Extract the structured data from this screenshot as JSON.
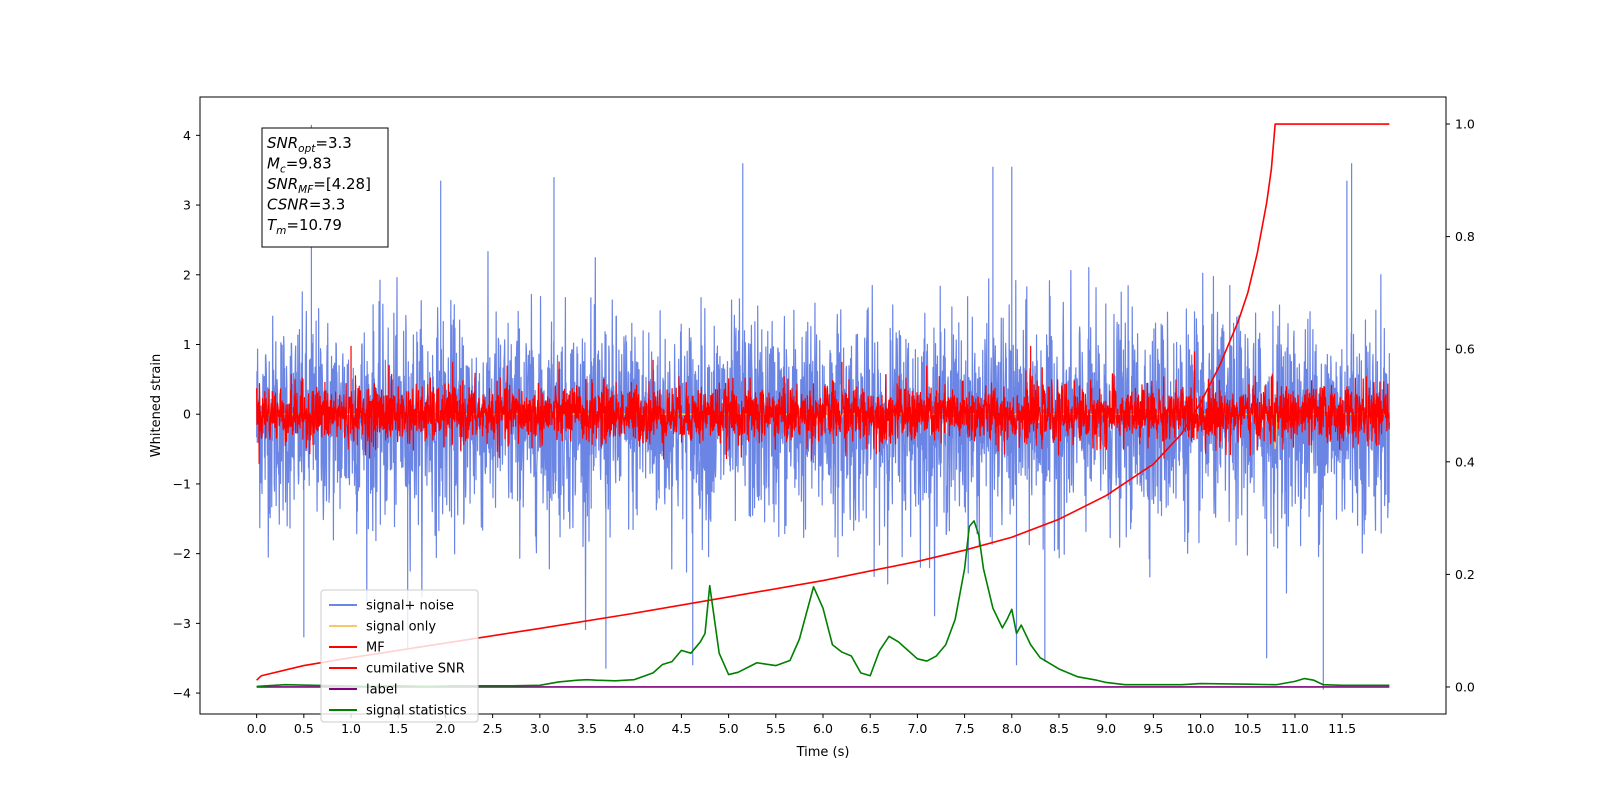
{
  "chart_data": {
    "type": "line",
    "xlabel": "Time (s)",
    "ylabel": "Whitened strain",
    "xlim": [
      -0.6,
      12.6
    ],
    "ylim": [
      -4.3,
      4.55
    ],
    "y2lim": [
      -0.048,
      1.048
    ],
    "x_ticks": [
      0.0,
      0.5,
      1.0,
      1.5,
      2.0,
      2.5,
      3.0,
      3.5,
      4.0,
      4.5,
      5.0,
      5.5,
      6.0,
      6.5,
      7.0,
      7.5,
      8.0,
      8.5,
      9.0,
      9.5,
      10.0,
      10.5,
      11.0,
      11.5
    ],
    "x_tick_labels": [
      "0.0",
      "0.5",
      "1.0",
      "1.5",
      "2.0",
      "2.5",
      "3.0",
      "3.5",
      "4.0",
      "4.5",
      "5.0",
      "5.5",
      "6.0",
      "6.5",
      "7.0",
      "7.5",
      "8.0",
      "8.5",
      "9.0",
      "9.5",
      "10.0",
      "10.5",
      "11.0",
      "11.5"
    ],
    "y_ticks": [
      -4,
      -3,
      -2,
      -1,
      0,
      1,
      2,
      3,
      4
    ],
    "y_tick_labels": [
      "−4",
      "−3",
      "−2",
      "−1",
      "0",
      "1",
      "2",
      "3",
      "4"
    ],
    "y2_ticks": [
      0.0,
      0.2,
      0.4,
      0.6,
      0.8,
      1.0
    ],
    "y2_tick_labels": [
      "0.0",
      "0.2",
      "0.4",
      "0.6",
      "0.8",
      "1.0"
    ],
    "series": [
      {
        "name": "signal+ noise",
        "color": "#6b85e5",
        "axis": "left",
        "style": "noise",
        "x_range": [
          0.0,
          12.0
        ],
        "mean": -0.1,
        "amplitude": 1.35,
        "spikes": [
          [
            0.58,
            4.15
          ],
          [
            1.95,
            3.35
          ],
          [
            3.15,
            3.4
          ],
          [
            5.15,
            3.6
          ],
          [
            7.8,
            3.55
          ],
          [
            8.0,
            3.55
          ],
          [
            11.6,
            3.6
          ],
          [
            11.55,
            3.35
          ],
          [
            3.7,
            -3.65
          ],
          [
            4.62,
            -3.6
          ],
          [
            8.05,
            -3.6
          ],
          [
            8.35,
            -3.55
          ],
          [
            10.7,
            -3.5
          ],
          [
            11.3,
            -3.95
          ],
          [
            0.5,
            -3.2
          ],
          [
            1.6,
            -3.35
          ]
        ]
      },
      {
        "name": "signal only",
        "color": "#f2c96b",
        "axis": "left",
        "style": "flat",
        "x_range": [
          0.0,
          12.0
        ],
        "blip_x": 10.79,
        "blip_y": -0.5
      },
      {
        "name": "MF",
        "color": "#ff0000",
        "axis": "left",
        "style": "noise",
        "x_range": [
          0.0,
          12.0
        ],
        "mean": 0.0,
        "amplitude": 0.38,
        "spikes": [
          [
            1.0,
            0.98
          ],
          [
            4.2,
            0.78
          ],
          [
            8.2,
            0.98
          ],
          [
            1.4,
            0.7
          ],
          [
            6.2,
            0.75
          ]
        ]
      },
      {
        "name": "cumilative SNR",
        "color": "#ff0000",
        "axis": "right",
        "style": "line",
        "x": [
          0.0,
          0.05,
          0.5,
          1.0,
          2.0,
          3.0,
          4.0,
          5.0,
          6.0,
          7.0,
          7.5,
          8.0,
          8.5,
          9.0,
          9.5,
          9.8,
          10.0,
          10.2,
          10.4,
          10.5,
          10.6,
          10.7,
          10.75,
          10.79,
          12.0
        ],
        "y": [
          0.012,
          0.02,
          0.038,
          0.052,
          0.078,
          0.104,
          0.131,
          0.16,
          0.189,
          0.223,
          0.243,
          0.266,
          0.298,
          0.34,
          0.396,
          0.45,
          0.505,
          0.57,
          0.65,
          0.7,
          0.77,
          0.86,
          0.92,
          1.0,
          1.0
        ]
      },
      {
        "name": "label",
        "color": "#800080",
        "axis": "right",
        "style": "line",
        "x": [
          0.0,
          12.0
        ],
        "y": [
          0.0,
          0.0
        ]
      },
      {
        "name": "signal statistics",
        "color": "#008000",
        "axis": "right",
        "style": "line",
        "x": [
          0.0,
          0.3,
          0.6,
          0.9,
          1.2,
          1.5,
          1.8,
          2.1,
          2.4,
          2.7,
          3.0,
          3.2,
          3.4,
          3.5,
          3.6,
          3.8,
          4.0,
          4.2,
          4.3,
          4.4,
          4.5,
          4.6,
          4.7,
          4.75,
          4.8,
          4.9,
          5.0,
          5.1,
          5.3,
          5.5,
          5.65,
          5.75,
          5.9,
          6.0,
          6.1,
          6.2,
          6.3,
          6.4,
          6.5,
          6.6,
          6.7,
          6.8,
          6.9,
          7.0,
          7.1,
          7.2,
          7.3,
          7.4,
          7.5,
          7.55,
          7.6,
          7.65,
          7.7,
          7.8,
          7.9,
          7.95,
          8.0,
          8.05,
          8.1,
          8.2,
          8.3,
          8.5,
          8.7,
          8.9,
          9.0,
          9.2,
          9.5,
          9.8,
          10.0,
          10.5,
          10.8,
          11.0,
          11.1,
          11.2,
          11.3,
          11.5,
          12.0
        ],
        "y": [
          0.001,
          0.004,
          0.003,
          0.002,
          0.001,
          0.002,
          0.001,
          0.002,
          0.002,
          0.002,
          0.003,
          0.009,
          0.012,
          0.013,
          0.012,
          0.011,
          0.013,
          0.025,
          0.04,
          0.045,
          0.065,
          0.06,
          0.08,
          0.095,
          0.18,
          0.06,
          0.022,
          0.026,
          0.043,
          0.038,
          0.047,
          0.085,
          0.178,
          0.14,
          0.075,
          0.062,
          0.055,
          0.025,
          0.02,
          0.065,
          0.09,
          0.08,
          0.065,
          0.05,
          0.046,
          0.055,
          0.075,
          0.12,
          0.21,
          0.285,
          0.295,
          0.27,
          0.21,
          0.14,
          0.105,
          0.12,
          0.138,
          0.095,
          0.11,
          0.075,
          0.052,
          0.032,
          0.018,
          0.012,
          0.008,
          0.004,
          0.004,
          0.004,
          0.006,
          0.005,
          0.004,
          0.01,
          0.015,
          0.012,
          0.004,
          0.003,
          0.003
        ]
      }
    ],
    "annotation": {
      "lines": [
        {
          "base": "SNR",
          "sub": "opt",
          "value": "=3.3"
        },
        {
          "base": "M",
          "sub": "c",
          "value": "=9.83"
        },
        {
          "base": "SNR",
          "sub": "MF",
          "value": "=[4.28]"
        },
        {
          "base": "CSNR",
          "sub": "",
          "value": "=3.3"
        },
        {
          "base": "T",
          "sub": "m",
          "value": "=10.79"
        }
      ]
    },
    "legend": {
      "position": "lower-left",
      "entries": [
        {
          "label": "signal+ noise",
          "color": "#6b85e5"
        },
        {
          "label": "signal only",
          "color": "#f2c96b"
        },
        {
          "label": "MF",
          "color": "#ff0000"
        },
        {
          "label": "cumilative SNR",
          "color": "#ff0000"
        },
        {
          "label": "label",
          "color": "#800080"
        },
        {
          "label": "signal statistics",
          "color": "#008000"
        }
      ]
    },
    "grid": false
  }
}
